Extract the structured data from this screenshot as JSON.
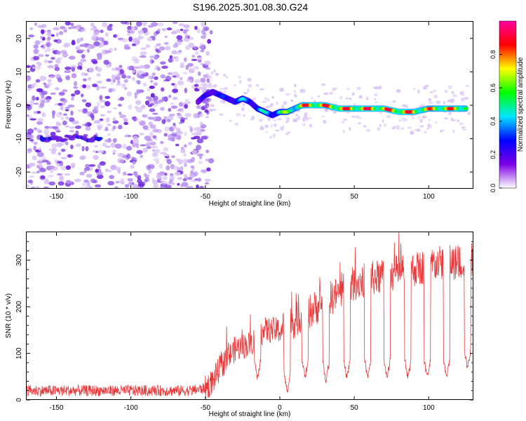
{
  "title": "S196.2025.301.08.30.G24",
  "colors": {
    "snr_line": "#e8383a",
    "axis": "#000000",
    "dot_faint": "#d9c2f5",
    "dot_light": "#b78ef0",
    "dot_mid": "#8f5ae8",
    "dot_strong": "#6a1ee0",
    "dot_blue": "#1010e8"
  },
  "chart_data": [
    {
      "type": "heatmap",
      "title": "",
      "xlabel": "Height of straight line (km)",
      "ylabel": "Frequency (Hz)",
      "xlim": [
        -170,
        130
      ],
      "ylim": [
        -25,
        25
      ],
      "xticks": [
        -150,
        -100,
        -50,
        0,
        50,
        100
      ],
      "yticks": [
        -20,
        -10,
        0,
        10,
        20
      ],
      "noise_region": {
        "x_range": [
          -170,
          -50
        ],
        "f_range": [
          -25,
          25
        ],
        "level": "low"
      },
      "low_band": {
        "x_range": [
          -160,
          -120
        ],
        "freq": -10,
        "amplitude": 0.25
      },
      "ridge": {
        "x": [
          -55,
          -50,
          -45,
          -40,
          -35,
          -30,
          -25,
          -20,
          -15,
          -10,
          -5,
          0,
          5,
          10,
          15,
          20,
          30,
          40,
          50,
          60,
          70,
          80,
          90,
          100,
          110,
          120,
          125
        ],
        "freq": [
          1,
          3,
          4,
          3,
          2,
          1,
          2,
          1,
          -1,
          -2,
          -3,
          -2,
          -2,
          -1,
          0,
          0,
          0,
          -1,
          -1,
          -1,
          -1,
          -2,
          -2,
          -1,
          -1,
          -1,
          -1
        ],
        "amplitude": [
          0.15,
          0.3,
          0.35,
          0.3,
          0.35,
          0.4,
          0.45,
          0.4,
          0.45,
          0.5,
          0.45,
          0.6,
          0.7,
          0.75,
          0.85,
          0.95,
          0.9,
          0.95,
          0.9,
          0.95,
          0.9,
          0.95,
          0.9,
          0.85,
          0.9,
          0.9,
          0.85
        ]
      },
      "colorbar": {
        "label": "Normalized spectral amplitude",
        "range": [
          0,
          1
        ],
        "ticks": [
          "0.0",
          "0.2",
          "0.4",
          "0.6",
          "0.8"
        ],
        "tick_values": [
          0,
          0.2,
          0.4,
          0.6,
          0.8
        ],
        "colormap": [
          "#ffffff",
          "#7d00e6",
          "#0000ff",
          "#00e6ff",
          "#00ff00",
          "#ffff00",
          "#ff0000",
          "#ff00a0"
        ]
      }
    },
    {
      "type": "line",
      "title": "",
      "xlabel": "Height of straight line (km)",
      "ylabel": "SNR (10 * v/v)",
      "xlim": [
        -170,
        130
      ],
      "ylim": [
        0,
        360
      ],
      "xticks": [
        -150,
        -100,
        -50,
        0,
        50,
        100
      ],
      "yticks": [
        0,
        100,
        200,
        300
      ],
      "series": [
        {
          "name": "SNR",
          "envelope_x": [
            -170,
            -150,
            -100,
            -60,
            -50,
            -45,
            -40,
            -35,
            -30,
            -20,
            -10,
            0,
            10,
            20,
            30,
            40,
            50,
            60,
            70,
            80,
            90,
            100,
            110,
            120,
            130
          ],
          "envelope_mean": [
            20,
            20,
            20,
            20,
            25,
            40,
            70,
            90,
            110,
            120,
            150,
            150,
            170,
            190,
            210,
            230,
            250,
            260,
            265,
            275,
            280,
            290,
            295,
            295,
            300
          ],
          "dip_x": [
            -15,
            5,
            17,
            31,
            45,
            59,
            72,
            86,
            99,
            112,
            126
          ],
          "dip_min": [
            40,
            10,
            40,
            35,
            40,
            40,
            40,
            40,
            40,
            40,
            60
          ]
        }
      ]
    }
  ]
}
